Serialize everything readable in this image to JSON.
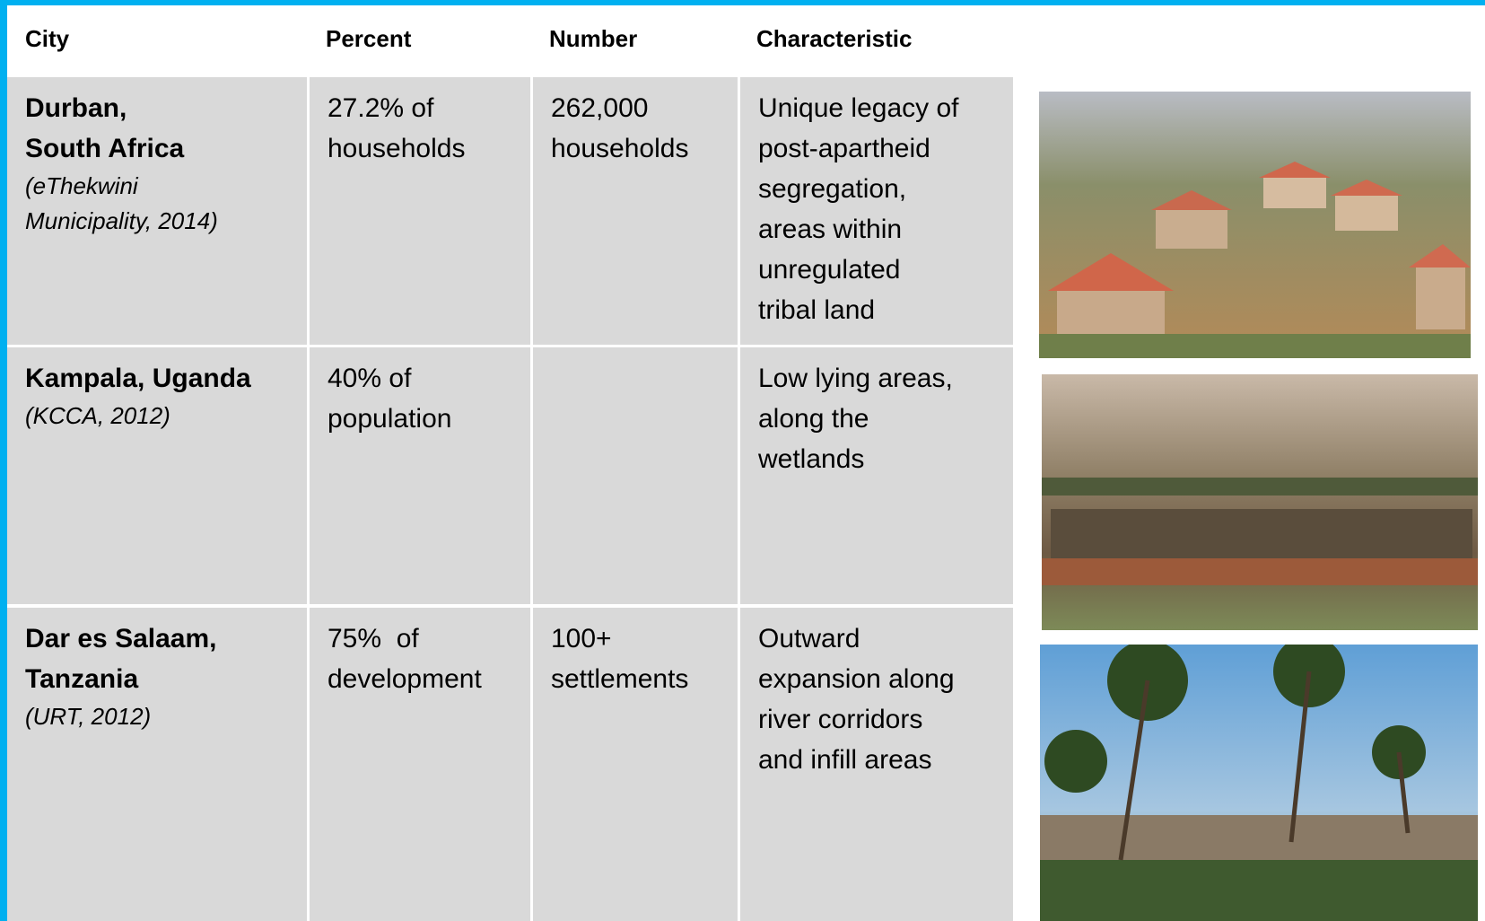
{
  "table": {
    "headers": [
      "City",
      "Percent",
      "Number",
      "Characteristic"
    ],
    "rows": [
      {
        "city": [
          "Durban,",
          "South Africa"
        ],
        "source": [
          "(eThekwini",
          "Municipality, 2014)"
        ],
        "percent": [
          "27.2% of",
          "households"
        ],
        "number": [
          "262,000",
          "households"
        ],
        "characteristic": [
          "Unique legacy of",
          "post-apartheid",
          "segregation,",
          "areas within",
          "unregulated",
          "tribal land"
        ]
      },
      {
        "city": [
          "Kampala, Uganda"
        ],
        "source": [
          "(KCCA, 2012)"
        ],
        "percent": [
          "40% of",
          "population"
        ],
        "characteristic": [
          "Low lying areas,",
          "along the",
          "wetlands"
        ]
      },
      {
        "city": [
          "Dar es Salaam,",
          "Tanzania"
        ],
        "source": [
          "(URT, 2012)"
        ],
        "percent": [
          "75%  of",
          "development"
        ],
        "number": [
          "100+",
          "settlements"
        ],
        "characteristic": [
          "Outward",
          "expansion along",
          "river corridors",
          "and infill areas"
        ]
      }
    ]
  }
}
